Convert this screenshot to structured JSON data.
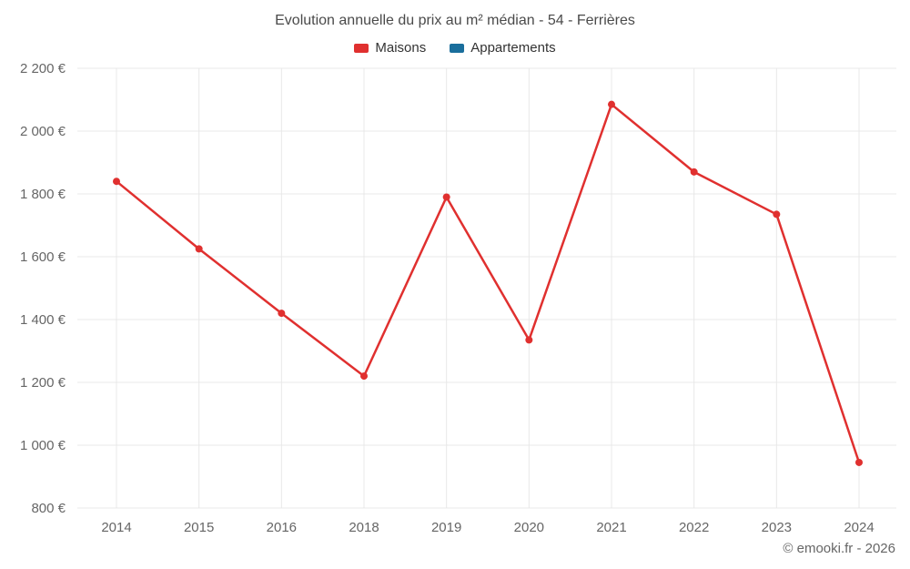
{
  "chart_data": {
    "type": "line",
    "title": "Evolution annuelle du prix au m² médian - 54 - Ferrières",
    "categories": [
      "2014",
      "2015",
      "2016",
      "2018",
      "2019",
      "2020",
      "2021",
      "2022",
      "2023",
      "2024"
    ],
    "series": [
      {
        "name": "Maisons",
        "color": "#e0302f",
        "values": [
          1840,
          1625,
          1420,
          1220,
          1790,
          1335,
          2085,
          1870,
          1735,
          945
        ]
      },
      {
        "name": "Appartements",
        "color": "#1a6e9c",
        "values": []
      }
    ],
    "ylim": [
      800,
      2200
    ],
    "yticks": [
      {
        "value": 800,
        "label": "800 €"
      },
      {
        "value": 1000,
        "label": "1 000 €"
      },
      {
        "value": 1200,
        "label": "1 200 €"
      },
      {
        "value": 1400,
        "label": "1 400 €"
      },
      {
        "value": 1600,
        "label": "1 600 €"
      },
      {
        "value": 1800,
        "label": "1 800 €"
      },
      {
        "value": 2000,
        "label": "2 000 €"
      },
      {
        "value": 2200,
        "label": "2 200 €"
      }
    ],
    "grid": true,
    "legend_position": "top",
    "grid_color": "#e8e8e8",
    "tick_color": "#666666"
  },
  "footer": {
    "credit": "© emooki.fr - 2026"
  }
}
